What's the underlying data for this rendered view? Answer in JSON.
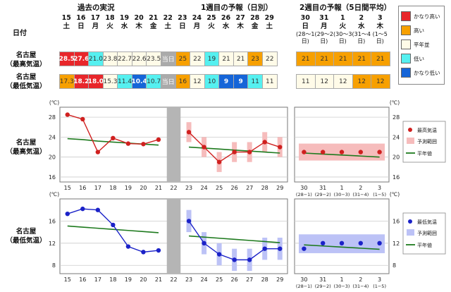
{
  "header": {
    "section_past": "過去の実況",
    "section_week1": "1週目の予報（日別）",
    "section_week2": "2週目の予報（5日間平均）",
    "date_label": "日付"
  },
  "days": [
    {
      "d": "15",
      "w": "土"
    },
    {
      "d": "16",
      "w": "日"
    },
    {
      "d": "17",
      "w": "月"
    },
    {
      "d": "18",
      "w": "火"
    },
    {
      "d": "19",
      "w": "水"
    },
    {
      "d": "20",
      "w": "木"
    },
    {
      "d": "21",
      "w": "金"
    },
    {
      "d": "22",
      "w": "土"
    },
    {
      "d": "23",
      "w": "日"
    },
    {
      "d": "24",
      "w": "月"
    },
    {
      "d": "25",
      "w": "火"
    },
    {
      "d": "26",
      "w": "水"
    },
    {
      "d": "27",
      "w": "木"
    },
    {
      "d": "28",
      "w": "金"
    },
    {
      "d": "29",
      "w": "土"
    }
  ],
  "week2_days": [
    {
      "d": "30",
      "w": "日",
      "sub": "(28～1日)"
    },
    {
      "d": "31",
      "w": "月",
      "sub": "(29～2日)"
    },
    {
      "d": "1",
      "w": "火",
      "sub": "(30～3日)"
    },
    {
      "d": "2",
      "w": "水",
      "sub": "(31～4日)"
    },
    {
      "d": "3",
      "w": "木",
      "sub": "(1～5日)"
    }
  ],
  "rows": {
    "max_label_1": "名古屋",
    "max_label_2": "（最高気温）",
    "min_label_1": "名古屋",
    "min_label_2": "（最低気温）"
  },
  "table": {
    "today_label": "当日",
    "max_cells": [
      {
        "v": "28.5",
        "c": "#e8262a",
        "t": "#fff",
        "b": true
      },
      {
        "v": "27.6",
        "c": "#e8262a",
        "t": "#fff",
        "b": true
      },
      {
        "v": "21.0",
        "c": "#55f0f0",
        "t": "#333",
        "b": false
      },
      {
        "v": "23.8",
        "c": "#fffbe8",
        "t": "#333",
        "b": false
      },
      {
        "v": "22.7",
        "c": "#fffbe8",
        "t": "#333",
        "b": false
      },
      {
        "v": "22.6",
        "c": "#fffbe8",
        "t": "#333",
        "b": false
      },
      {
        "v": "23.5",
        "c": "#fffbe8",
        "t": "#333",
        "b": false
      },
      {
        "v": "当日",
        "c": "#aaaaaa",
        "t": "#fff",
        "b": false
      },
      {
        "v": "25",
        "c": "#f7a000",
        "t": "#333",
        "b": false
      },
      {
        "v": "22",
        "c": "#fffbe8",
        "t": "#333",
        "b": false
      },
      {
        "v": "19",
        "c": "#55f0f0",
        "t": "#333",
        "b": false
      },
      {
        "v": "21",
        "c": "#fffbe8",
        "t": "#333",
        "b": false
      },
      {
        "v": "21",
        "c": "#fffbe8",
        "t": "#333",
        "b": false
      },
      {
        "v": "23",
        "c": "#f7a000",
        "t": "#333",
        "b": false
      },
      {
        "v": "22",
        "c": "#fffbe8",
        "t": "#333",
        "b": false
      }
    ],
    "min_cells": [
      {
        "v": "17.3",
        "c": "#f7a000",
        "t": "#333",
        "b": false
      },
      {
        "v": "18.2",
        "c": "#e8262a",
        "t": "#fff",
        "b": true
      },
      {
        "v": "18.0",
        "c": "#e8262a",
        "t": "#fff",
        "b": true
      },
      {
        "v": "15.3",
        "c": "#fffbe8",
        "t": "#333",
        "b": false
      },
      {
        "v": "11.4",
        "c": "#55f0f0",
        "t": "#333",
        "b": false
      },
      {
        "v": "10.4",
        "c": "#1565d8",
        "t": "#fff",
        "b": true
      },
      {
        "v": "10.7",
        "c": "#55f0f0",
        "t": "#333",
        "b": false
      },
      {
        "v": "当日",
        "c": "#aaaaaa",
        "t": "#fff",
        "b": false
      },
      {
        "v": "16",
        "c": "#f7a000",
        "t": "#333",
        "b": false
      },
      {
        "v": "12",
        "c": "#fffbe8",
        "t": "#333",
        "b": false
      },
      {
        "v": "10",
        "c": "#55f0f0",
        "t": "#333",
        "b": false
      },
      {
        "v": "9",
        "c": "#1565d8",
        "t": "#fff",
        "b": true
      },
      {
        "v": "9",
        "c": "#1565d8",
        "t": "#fff",
        "b": true
      },
      {
        "v": "11",
        "c": "#55f0f0",
        "t": "#333",
        "b": false
      },
      {
        "v": "11",
        "c": "#fffbe8",
        "t": "#333",
        "b": false
      }
    ],
    "max_week2": [
      {
        "v": "21",
        "c": "#f7a000",
        "t": "#333"
      },
      {
        "v": "21",
        "c": "#f7a000",
        "t": "#333"
      },
      {
        "v": "21",
        "c": "#f7a000",
        "t": "#333"
      },
      {
        "v": "21",
        "c": "#f7a000",
        "t": "#333"
      },
      {
        "v": "21",
        "c": "#f7a000",
        "t": "#333"
      }
    ],
    "min_week2": [
      {
        "v": "11",
        "c": "#fffbe8",
        "t": "#333"
      },
      {
        "v": "12",
        "c": "#fffbe8",
        "t": "#333"
      },
      {
        "v": "12",
        "c": "#fffbe8",
        "t": "#333"
      },
      {
        "v": "12",
        "c": "#f7a000",
        "t": "#333"
      },
      {
        "v": "12",
        "c": "#f7a000",
        "t": "#333"
      }
    ]
  },
  "legend_table": [
    {
      "label": "かなり高い",
      "color": "#e8262a"
    },
    {
      "label": "高い",
      "color": "#f7a000"
    },
    {
      "label": "平年並",
      "color": "#fffbe8"
    },
    {
      "label": "低い",
      "color": "#55f0f0"
    },
    {
      "label": "かなり低い",
      "color": "#1565d8"
    }
  ],
  "chart_data": [
    {
      "type": "line",
      "name": "max",
      "row_label_1": "名古屋",
      "row_label_2": "（最高気温）",
      "unit": "(℃)",
      "ylim": [
        15,
        30
      ],
      "yticks": [
        16,
        20,
        24,
        28
      ],
      "x_left": [
        "15",
        "16",
        "17",
        "18",
        "19",
        "20",
        "21",
        "22",
        "23",
        "24",
        "25",
        "26",
        "27",
        "28",
        "29"
      ],
      "x_right": [
        "30",
        "31",
        "1",
        "2",
        "3"
      ],
      "x_right_sub": [
        "(28−1)",
        "(29−2)",
        "(30−3)",
        "(31−4)",
        "(1−5)"
      ],
      "observed": [
        28.5,
        27.6,
        21.0,
        23.8,
        22.7,
        22.6,
        23.5
      ],
      "normal_past": [
        23.7,
        23.5,
        23.2,
        23.0,
        22.8,
        22.6,
        22.4
      ],
      "forecast": [
        25,
        22,
        19,
        21,
        21,
        23,
        22
      ],
      "forecast_range": [
        [
          23,
          27
        ],
        [
          20,
          24
        ],
        [
          17,
          21
        ],
        [
          19,
          23
        ],
        [
          19,
          23
        ],
        [
          21,
          25
        ],
        [
          20,
          24
        ]
      ],
      "normal_forecast": [
        22.0,
        21.8,
        21.6,
        21.4,
        21.2,
        21.0,
        20.8
      ],
      "week2": [
        21,
        21,
        21,
        21,
        21
      ],
      "week2_range": [
        19.3,
        22.7
      ],
      "week2_normal": [
        20.8,
        20.6,
        20.4,
        20.2,
        20.0
      ],
      "point_color": "#d0201f",
      "range_color": "#f6bcbc",
      "normal_color": "#1e7a1e",
      "legend": [
        "最高気温",
        "予測範囲",
        "平年値"
      ]
    },
    {
      "type": "line",
      "name": "min",
      "row_label_1": "名古屋",
      "row_label_2": "（最低気温）",
      "unit": "(℃)",
      "ylim": [
        6.5,
        20
      ],
      "yticks": [
        8,
        12,
        16
      ],
      "x_left": [
        "15",
        "16",
        "17",
        "18",
        "19",
        "20",
        "21",
        "22",
        "23",
        "24",
        "25",
        "26",
        "27",
        "28",
        "29"
      ],
      "x_right": [
        "30",
        "31",
        "1",
        "2",
        "3"
      ],
      "x_right_sub": [
        "(28−1)",
        "(29−2)",
        "(30−3)",
        "(31−4)",
        "(1−5)"
      ],
      "observed": [
        17.3,
        18.2,
        18.0,
        15.3,
        11.4,
        10.4,
        10.7
      ],
      "normal_past": [
        15.1,
        14.9,
        14.7,
        14.5,
        14.3,
        14.1,
        13.9
      ],
      "forecast": [
        16,
        12,
        10,
        9,
        9,
        11,
        11
      ],
      "forecast_range": [
        [
          14,
          18
        ],
        [
          10,
          14
        ],
        [
          8,
          12
        ],
        [
          7,
          11
        ],
        [
          7,
          11
        ],
        [
          9,
          13
        ],
        [
          9,
          13
        ]
      ],
      "normal_forecast": [
        13.3,
        13.1,
        12.9,
        12.7,
        12.5,
        12.3,
        12.1
      ],
      "week2": [
        11,
        12,
        12,
        12,
        12
      ],
      "week2_range": [
        10.2,
        13.6
      ],
      "week2_normal": [
        11.7,
        11.5,
        11.3,
        11.1,
        10.9
      ],
      "point_color": "#1b22c8",
      "range_color": "#bcc2f6",
      "normal_color": "#1e7a1e",
      "legend": [
        "最低気温",
        "予測範囲",
        "平年値"
      ]
    }
  ]
}
